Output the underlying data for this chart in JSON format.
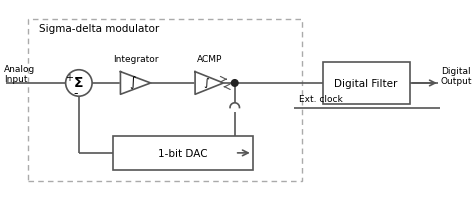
{
  "title": "Sigma-delta modulator",
  "bg_color": "#ffffff",
  "line_color": "#555555",
  "text_color": "#000000",
  "fig_width": 4.74,
  "fig_height": 2.01,
  "dpi": 100,
  "labels": {
    "analog_input": "Analog\nInput",
    "integrator": "Integrator",
    "acmp": "ACMP",
    "digital_filter": "Digital Filter",
    "digital_output": "Digital\nOutput",
    "ext_clock": "Ext. clock",
    "dac": "1-bit DAC",
    "plus": "+",
    "minus": "-",
    "sigma": "Σ",
    "integral": "∫"
  }
}
